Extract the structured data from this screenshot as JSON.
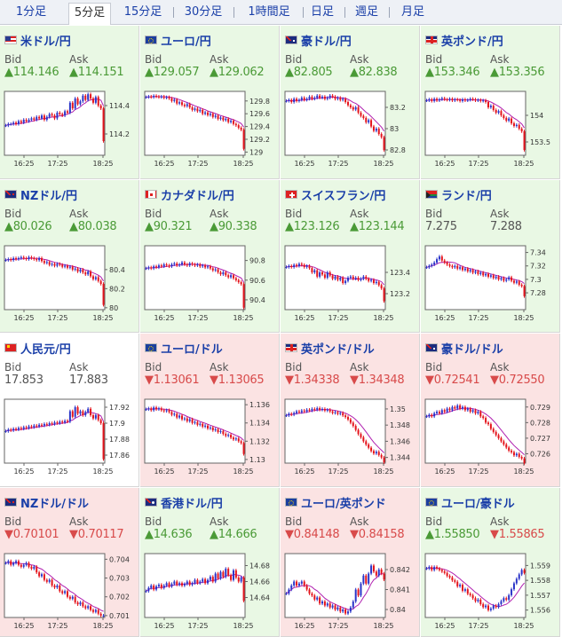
{
  "tabs": [
    "1分足",
    "5分足",
    "15分足",
    "30分足",
    "1時間足",
    "日足",
    "週足",
    "月足"
  ],
  "active_tab": 1,
  "colors": {
    "up": "#4a9a36",
    "down": "#d84a4a",
    "candle_up": "#2a34c8",
    "candle_down": "#e4141c",
    "ma": "#b020b0"
  },
  "bid_label": "Bid",
  "ask_label": "Ask",
  "pairs": [
    {
      "name": "米ドル/円",
      "flag": "us",
      "trend": "up",
      "bid": "▲114.146",
      "ask": "▲114.151"
    },
    {
      "name": "ユーロ/円",
      "flag": "eu",
      "trend": "up",
      "bid": "▲129.057",
      "ask": "▲129.062"
    },
    {
      "name": "豪ドル/円",
      "flag": "au",
      "trend": "up",
      "bid": "▲82.805",
      "ask": "▲82.838"
    },
    {
      "name": "英ポンド/円",
      "flag": "gb",
      "trend": "up",
      "bid": "▲153.346",
      "ask": "▲153.356"
    },
    {
      "name": "NZドル/円",
      "flag": "nz",
      "trend": "up",
      "bid": "▲80.026",
      "ask": "▲80.038"
    },
    {
      "name": "カナダドル/円",
      "flag": "ca",
      "trend": "up",
      "bid": "▲90.321",
      "ask": "▲90.338"
    },
    {
      "name": "スイスフラン/円",
      "flag": "ch",
      "trend": "up",
      "bid": "▲123.126",
      "ask": "▲123.144"
    },
    {
      "name": "ランド/円",
      "flag": "za",
      "trend": "up",
      "bid": "7.275",
      "ask": "7.288"
    },
    {
      "name": "人民元/円",
      "flag": "cn",
      "trend": "flat",
      "bid": "17.853",
      "ask": "17.883"
    },
    {
      "name": "ユーロ/ドル",
      "flag": "eu",
      "trend": "down",
      "bid": "▼1.13061",
      "ask": "▼1.13065"
    },
    {
      "name": "英ポンド/ドル",
      "flag": "gb",
      "trend": "down",
      "bid": "▼1.34338",
      "ask": "▼1.34348"
    },
    {
      "name": "豪ドル/ドル",
      "flag": "au",
      "trend": "down",
      "bid": "▼0.72541",
      "ask": "▼0.72550"
    },
    {
      "name": "NZドル/ドル",
      "flag": "nz",
      "trend": "down",
      "bid": "▼0.70101",
      "ask": "▼0.70117"
    },
    {
      "name": "香港ドル/円",
      "flag": "hk",
      "trend": "up",
      "bid": "▲14.636",
      "ask": "▲14.666"
    },
    {
      "name": "ユーロ/英ポンド",
      "flag": "eu",
      "trend": "down",
      "bid": "▼0.84148",
      "ask": "▼0.84158"
    },
    {
      "name": "ユーロ/豪ドル",
      "flag": "eu",
      "trend": "up",
      "bid": "▲1.55850",
      "ask": "▼1.55865"
    }
  ],
  "chart_data": [
    {
      "type": "candlestick",
      "xticks": [
        "16:25",
        "17:25",
        "18:25"
      ],
      "ylim": [
        114.05,
        114.5
      ],
      "yticks": [
        "114.4",
        "114.2"
      ],
      "ytick_values": [
        114.4,
        114.2
      ],
      "close": [
        114.26,
        114.27,
        114.27,
        114.28,
        114.27,
        114.29,
        114.28,
        114.3,
        114.29,
        114.3,
        114.31,
        114.3,
        114.32,
        114.31,
        114.33,
        114.3,
        114.32,
        114.34,
        114.33,
        114.31,
        114.35,
        114.34,
        114.33,
        114.36,
        114.35,
        114.42,
        114.38,
        114.45,
        114.41,
        114.43,
        114.47,
        114.44,
        114.48,
        114.45,
        114.42,
        114.46,
        114.4,
        114.38,
        114.15
      ]
    },
    {
      "type": "candlestick",
      "xticks": [
        "16:25",
        "17:25",
        "18:25"
      ],
      "ylim": [
        128.95,
        129.95
      ],
      "yticks": [
        "129.8",
        "129.6",
        "129.4",
        "129.2",
        "129"
      ],
      "ytick_values": [
        129.8,
        129.6,
        129.4,
        129.2,
        129.0
      ],
      "close": [
        129.86,
        129.87,
        129.86,
        129.88,
        129.87,
        129.86,
        129.87,
        129.85,
        129.86,
        129.84,
        129.8,
        129.82,
        129.76,
        129.78,
        129.74,
        129.72,
        129.75,
        129.7,
        129.66,
        129.68,
        129.64,
        129.66,
        129.6,
        129.62,
        129.58,
        129.6,
        129.55,
        129.57,
        129.52,
        129.54,
        129.5,
        129.52,
        129.47,
        129.49,
        129.44,
        129.42,
        129.38,
        129.35,
        129.05
      ]
    },
    {
      "type": "candlestick",
      "xticks": [
        "16:25",
        "17:25",
        "18:25"
      ],
      "ylim": [
        82.75,
        83.35
      ],
      "yticks": [
        "83.2",
        "83",
        "82.8"
      ],
      "ytick_values": [
        83.2,
        83.0,
        82.8
      ],
      "close": [
        83.26,
        83.27,
        83.25,
        83.28,
        83.26,
        83.27,
        83.29,
        83.27,
        83.28,
        83.3,
        83.28,
        83.29,
        83.31,
        83.29,
        83.3,
        83.28,
        83.29,
        83.31,
        83.3,
        83.28,
        83.29,
        83.27,
        83.28,
        83.25,
        83.22,
        83.2,
        83.18,
        83.2,
        83.15,
        83.12,
        83.1,
        83.06,
        83.08,
        83.02,
        82.98,
        83.0,
        82.95,
        82.92,
        82.8
      ]
    },
    {
      "type": "candlestick",
      "xticks": [
        "16:25",
        "17:25",
        "18:25"
      ],
      "ylim": [
        153.25,
        154.45
      ],
      "yticks": [
        "154",
        "153.5"
      ],
      "ytick_values": [
        154.0,
        153.5
      ],
      "close": [
        154.28,
        154.3,
        154.27,
        154.31,
        154.28,
        154.3,
        154.32,
        154.3,
        154.29,
        154.31,
        154.28,
        154.3,
        154.29,
        154.27,
        154.3,
        154.28,
        154.29,
        154.31,
        154.3,
        154.28,
        154.29,
        154.27,
        154.28,
        154.25,
        154.15,
        154.18,
        154.1,
        154.05,
        154.08,
        154.0,
        153.95,
        153.9,
        153.94,
        153.85,
        153.8,
        153.82,
        153.75,
        153.7,
        153.35
      ]
    },
    {
      "type": "candlestick",
      "xticks": [
        "16:25",
        "17:25",
        "18:25"
      ],
      "ylim": [
        79.98,
        80.65
      ],
      "yticks": [
        "80.4",
        "80.2",
        "80"
      ],
      "ytick_values": [
        80.4,
        80.2,
        80.0
      ],
      "close": [
        80.5,
        80.51,
        80.5,
        80.52,
        80.51,
        80.52,
        80.53,
        80.52,
        80.51,
        80.53,
        80.52,
        80.51,
        80.5,
        80.52,
        80.49,
        80.47,
        80.48,
        80.45,
        80.46,
        80.44,
        80.46,
        80.45,
        80.43,
        80.44,
        80.42,
        80.43,
        80.4,
        80.41,
        80.38,
        80.4,
        80.37,
        80.35,
        80.38,
        80.33,
        80.3,
        80.32,
        80.28,
        80.25,
        80.03
      ]
    },
    {
      "type": "candlestick",
      "xticks": [
        "16:25",
        "17:25",
        "18:25"
      ],
      "ylim": [
        90.3,
        90.95
      ],
      "yticks": [
        "90.8",
        "90.6",
        "90.4"
      ],
      "ytick_values": [
        90.8,
        90.6,
        90.4
      ],
      "close": [
        90.72,
        90.73,
        90.72,
        90.74,
        90.73,
        90.75,
        90.74,
        90.76,
        90.75,
        90.74,
        90.76,
        90.77,
        90.75,
        90.76,
        90.78,
        90.76,
        90.75,
        90.77,
        90.76,
        90.75,
        90.76,
        90.74,
        90.75,
        90.73,
        90.74,
        90.72,
        90.7,
        90.71,
        90.68,
        90.66,
        90.68,
        90.65,
        90.63,
        90.65,
        90.62,
        90.6,
        90.58,
        90.56,
        90.32
      ]
    },
    {
      "type": "candlestick",
      "xticks": [
        "16:25",
        "17:25",
        "18:25"
      ],
      "ylim": [
        123.05,
        123.65
      ],
      "yticks": [
        "123.4",
        "123.2"
      ],
      "ytick_values": [
        123.4,
        123.2
      ],
      "close": [
        123.45,
        123.46,
        123.45,
        123.47,
        123.46,
        123.48,
        123.47,
        123.45,
        123.46,
        123.44,
        123.4,
        123.42,
        123.36,
        123.4,
        123.38,
        123.35,
        123.4,
        123.37,
        123.34,
        123.36,
        123.33,
        123.35,
        123.3,
        123.32,
        123.35,
        123.36,
        123.34,
        123.35,
        123.33,
        123.34,
        123.36,
        123.34,
        123.32,
        123.33,
        123.3,
        123.31,
        123.28,
        123.25,
        123.13
      ]
    },
    {
      "type": "candlestick",
      "xticks": [
        "16:25",
        "17:25",
        "18:25"
      ],
      "ylim": [
        7.255,
        7.35
      ],
      "yticks": [
        "7.34",
        "7.32",
        "7.3",
        "7.28"
      ],
      "ytick_values": [
        7.34,
        7.32,
        7.3,
        7.28
      ],
      "close": [
        7.318,
        7.32,
        7.322,
        7.325,
        7.33,
        7.334,
        7.328,
        7.325,
        7.322,
        7.32,
        7.318,
        7.32,
        7.316,
        7.318,
        7.314,
        7.316,
        7.312,
        7.314,
        7.31,
        7.312,
        7.308,
        7.31,
        7.306,
        7.308,
        7.304,
        7.306,
        7.302,
        7.304,
        7.3,
        7.302,
        7.298,
        7.3,
        7.303,
        7.298,
        7.295,
        7.297,
        7.292,
        7.29,
        7.275
      ]
    },
    {
      "type": "candlestick",
      "xticks": [
        "16:25",
        "17:25",
        "18:25"
      ],
      "ylim": [
        17.85,
        17.93
      ],
      "yticks": [
        "17.92",
        "17.9",
        "17.88",
        "17.86"
      ],
      "ytick_values": [
        17.92,
        17.9,
        17.88,
        17.86
      ],
      "close": [
        17.89,
        17.892,
        17.891,
        17.893,
        17.892,
        17.894,
        17.893,
        17.895,
        17.894,
        17.896,
        17.895,
        17.897,
        17.896,
        17.898,
        17.897,
        17.899,
        17.898,
        17.9,
        17.899,
        17.901,
        17.9,
        17.902,
        17.901,
        17.903,
        17.902,
        17.915,
        17.908,
        17.92,
        17.912,
        17.915,
        17.91,
        17.914,
        17.918,
        17.91,
        17.906,
        17.91,
        17.904,
        17.9,
        17.855
      ]
    },
    {
      "type": "candlestick",
      "xticks": [
        "16:25",
        "17:25",
        "18:25"
      ],
      "ylim": [
        1.1296,
        1.1366
      ],
      "yticks": [
        "1.136",
        "1.134",
        "1.132",
        "1.13"
      ],
      "ytick_values": [
        1.136,
        1.134,
        1.132,
        1.13
      ],
      "close": [
        1.1355,
        1.1356,
        1.1354,
        1.1357,
        1.1355,
        1.1356,
        1.1354,
        1.1353,
        1.1354,
        1.1352,
        1.1349,
        1.135,
        1.1346,
        1.1348,
        1.1344,
        1.1345,
        1.1342,
        1.1344,
        1.134,
        1.1341,
        1.1338,
        1.1339,
        1.1336,
        1.1337,
        1.1334,
        1.1335,
        1.1332,
        1.1333,
        1.133,
        1.1331,
        1.1328,
        1.1326,
        1.1327,
        1.1324,
        1.1322,
        1.1323,
        1.132,
        1.1318,
        1.1306
      ]
    },
    {
      "type": "candlestick",
      "xticks": [
        "16:25",
        "17:25",
        "18:25"
      ],
      "ylim": [
        1.3433,
        1.3512
      ],
      "yticks": [
        "1.35",
        "1.348",
        "1.346",
        "1.344"
      ],
      "ytick_values": [
        1.35,
        1.348,
        1.346,
        1.344
      ],
      "close": [
        1.3492,
        1.3494,
        1.3493,
        1.3495,
        1.3497,
        1.3496,
        1.3498,
        1.3497,
        1.3499,
        1.3498,
        1.35,
        1.3499,
        1.3501,
        1.3499,
        1.35,
        1.3498,
        1.3499,
        1.3497,
        1.3495,
        1.3496,
        1.3494,
        1.3495,
        1.3492,
        1.349,
        1.3487,
        1.3483,
        1.3479,
        1.3474,
        1.3469,
        1.3465,
        1.346,
        1.3456,
        1.3452,
        1.3448,
        1.3445,
        1.3447,
        1.3443,
        1.344,
        1.3434
      ]
    },
    {
      "type": "candlestick",
      "xticks": [
        "16:25",
        "17:25",
        "18:25"
      ],
      "ylim": [
        0.7254,
        0.7295
      ],
      "yticks": [
        "0.729",
        "0.728",
        "0.727",
        "0.726"
      ],
      "ytick_values": [
        0.729,
        0.728,
        0.727,
        0.726
      ],
      "close": [
        0.7284,
        0.7285,
        0.7284,
        0.7286,
        0.7287,
        0.7286,
        0.7288,
        0.7287,
        0.7289,
        0.7288,
        0.729,
        0.7289,
        0.7291,
        0.7289,
        0.729,
        0.7288,
        0.7289,
        0.7287,
        0.7288,
        0.7286,
        0.7287,
        0.7284,
        0.7283,
        0.728,
        0.7279,
        0.7276,
        0.7274,
        0.7272,
        0.727,
        0.7268,
        0.7266,
        0.7264,
        0.7262,
        0.7261,
        0.7259,
        0.726,
        0.7258,
        0.7257,
        0.7254
      ]
    },
    {
      "type": "candlestick",
      "xticks": [
        "16:25",
        "17:25",
        "18:25"
      ],
      "ylim": [
        0.7009,
        0.7043
      ],
      "yticks": [
        "0.704",
        "0.703",
        "0.702",
        "0.701"
      ],
      "ytick_values": [
        0.704,
        0.703,
        0.702,
        0.701
      ],
      "close": [
        0.7038,
        0.7039,
        0.7037,
        0.7038,
        0.7039,
        0.7037,
        0.7036,
        0.7037,
        0.7038,
        0.7036,
        0.7035,
        0.7036,
        0.7033,
        0.7031,
        0.7032,
        0.7029,
        0.7028,
        0.7029,
        0.7026,
        0.7025,
        0.7026,
        0.7023,
        0.7022,
        0.7023,
        0.702,
        0.7019,
        0.702,
        0.7017,
        0.7016,
        0.7017,
        0.7015,
        0.7014,
        0.7015,
        0.7013,
        0.7012,
        0.7013,
        0.7011,
        0.701,
        0.701
      ]
    },
    {
      "type": "candlestick",
      "xticks": [
        "16:25",
        "17:25",
        "18:25"
      ],
      "ylim": [
        14.615,
        14.695
      ],
      "yticks": [
        "14.68",
        "14.66",
        "14.64"
      ],
      "ytick_values": [
        14.68,
        14.66,
        14.64
      ],
      "close": [
        14.648,
        14.652,
        14.655,
        14.65,
        14.654,
        14.656,
        14.652,
        14.655,
        14.658,
        14.654,
        14.657,
        14.66,
        14.656,
        14.658,
        14.655,
        14.657,
        14.66,
        14.656,
        14.658,
        14.662,
        14.658,
        14.66,
        14.663,
        14.658,
        14.662,
        14.666,
        14.66,
        14.67,
        14.664,
        14.672,
        14.666,
        14.676,
        14.668,
        14.662,
        14.674,
        14.665,
        14.66,
        14.665,
        14.636
      ]
    },
    {
      "type": "candlestick",
      "xticks": [
        "16:25",
        "17:25",
        "18:25"
      ],
      "ylim": [
        0.8396,
        0.8428
      ],
      "yticks": [
        "0.842",
        "0.841",
        "0.84"
      ],
      "ytick_values": [
        0.842,
        0.841,
        0.84
      ],
      "close": [
        0.8408,
        0.841,
        0.8412,
        0.8414,
        0.8412,
        0.8413,
        0.8414,
        0.8412,
        0.841,
        0.8408,
        0.8407,
        0.8405,
        0.8406,
        0.8403,
        0.8404,
        0.8402,
        0.8403,
        0.8401,
        0.8402,
        0.84,
        0.8401,
        0.8399,
        0.84,
        0.8398,
        0.8399,
        0.8401,
        0.8404,
        0.841,
        0.8407,
        0.8413,
        0.8417,
        0.8413,
        0.8418,
        0.8422,
        0.8419,
        0.8417,
        0.842,
        0.8418,
        0.8415
      ]
    },
    {
      "type": "candlestick",
      "xticks": [
        "16:25",
        "17:25",
        "18:25"
      ],
      "ylim": [
        1.5555,
        1.5598
      ],
      "yticks": [
        "1.559",
        "1.558",
        "1.557",
        "1.556"
      ],
      "ytick_values": [
        1.559,
        1.558,
        1.557,
        1.556
      ],
      "close": [
        1.5588,
        1.5589,
        1.5587,
        1.5589,
        1.5588,
        1.5587,
        1.5586,
        1.5585,
        1.5583,
        1.5582,
        1.558,
        1.5579,
        1.5576,
        1.5577,
        1.5573,
        1.5574,
        1.5571,
        1.557,
        1.5568,
        1.5566,
        1.5567,
        1.5564,
        1.5562,
        1.5563,
        1.556,
        1.5561,
        1.5563,
        1.5562,
        1.5564,
        1.5566,
        1.5568,
        1.5567,
        1.557,
        1.5574,
        1.5578,
        1.5581,
        1.5584,
        1.5587,
        1.5585
      ]
    }
  ]
}
